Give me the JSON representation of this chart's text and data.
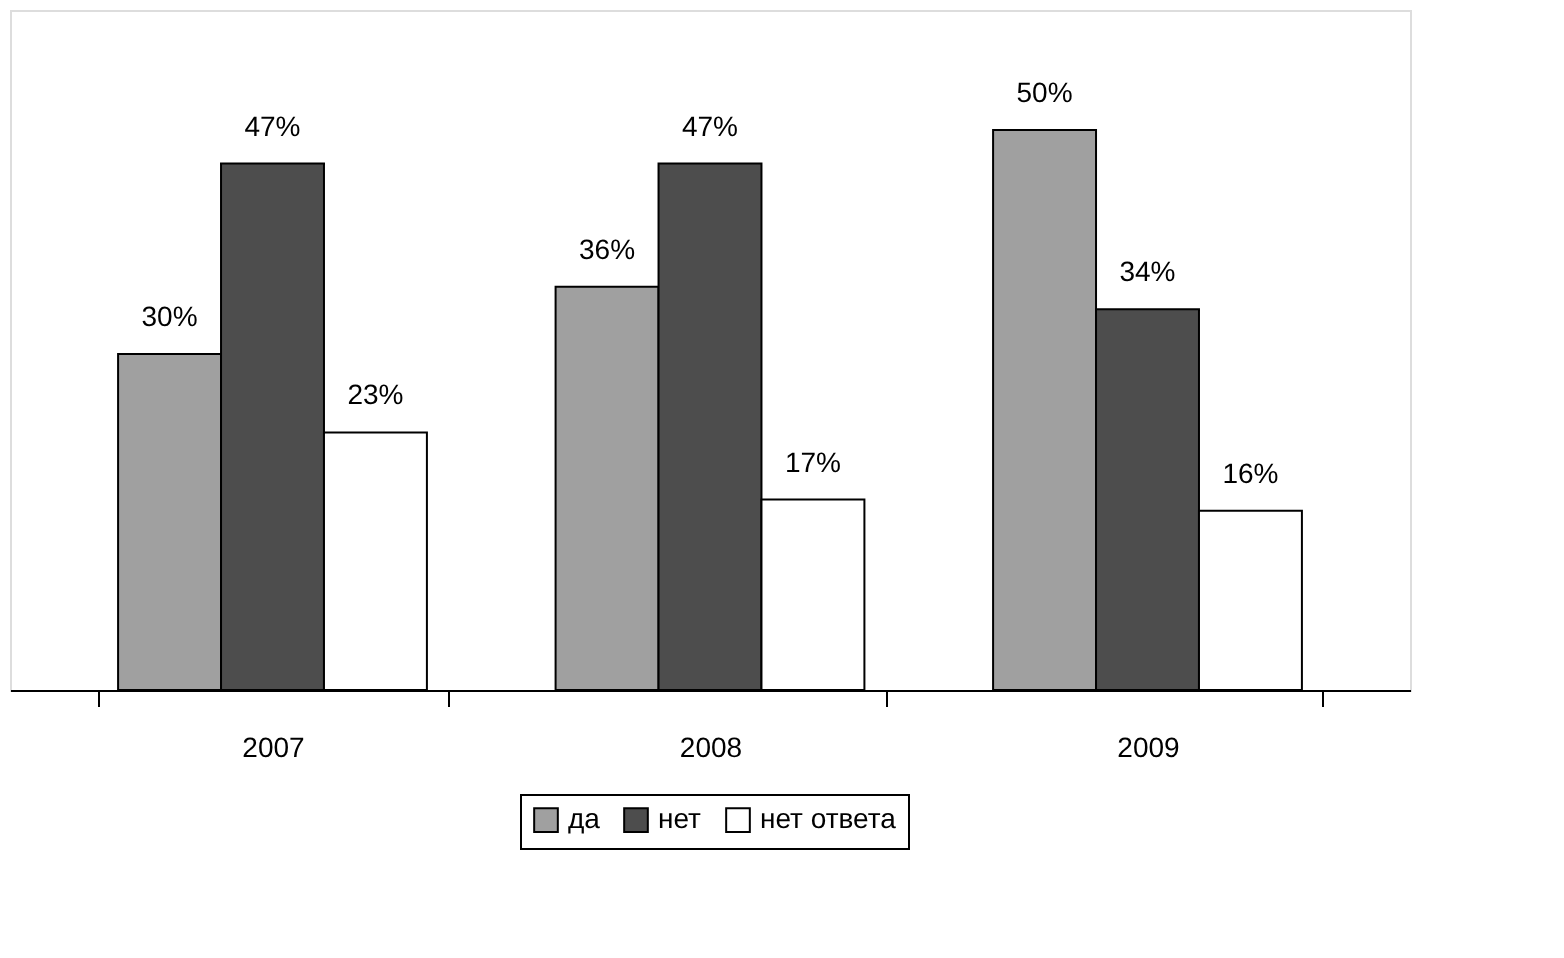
{
  "chart_data": {
    "type": "bar",
    "categories": [
      "2007",
      "2008",
      "2009"
    ],
    "series": [
      {
        "name": "да",
        "color": "#a0a0a0",
        "values": [
          30,
          36,
          50
        ],
        "value_labels": [
          "30%",
          "36%",
          "50%"
        ]
      },
      {
        "name": "нет",
        "color": "#4d4d4d",
        "values": [
          47,
          47,
          34
        ],
        "value_labels": [
          "47%",
          "47%",
          "34%"
        ]
      },
      {
        "name": "нет ответа",
        "color": "#ffffff",
        "values": [
          23,
          17,
          16
        ],
        "value_labels": [
          "23%",
          "17%",
          "16%"
        ]
      }
    ],
    "legend": "bottom",
    "tick_labels": "x"
  }
}
